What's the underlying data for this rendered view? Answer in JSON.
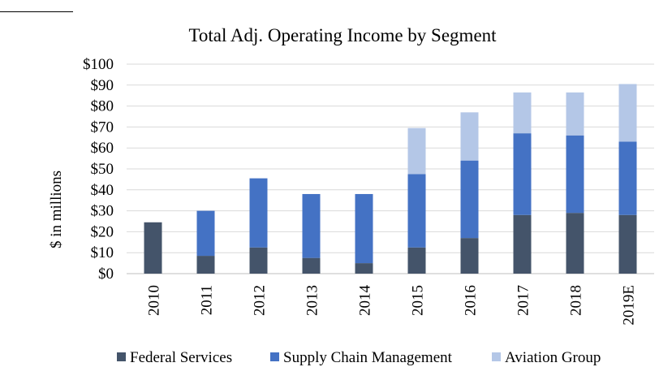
{
  "chart_data": {
    "type": "bar",
    "stacked": true,
    "title": "Total Adj. Operating Income by Segment",
    "xlabel": "",
    "ylabel": "$ in millions",
    "ylim": [
      0,
      100
    ],
    "y_ticks": [
      "$0",
      "$10",
      "$20",
      "$30",
      "$40",
      "$50",
      "$60",
      "$70",
      "$80",
      "$90",
      "$100"
    ],
    "grid": true,
    "legend_position": "bottom",
    "categories": [
      "2010",
      "2011",
      "2012",
      "2013",
      "2014",
      "2015",
      "2016",
      "2017",
      "2018",
      "2019E"
    ],
    "series": [
      {
        "name": "Federal Services",
        "color": "#44546a",
        "values": [
          24.5,
          8.5,
          12.5,
          7.5,
          5,
          12.5,
          17,
          28,
          29,
          28
        ]
      },
      {
        "name": "Supply Chain Management",
        "color": "#4472c4",
        "values": [
          0,
          21.5,
          33,
          30.5,
          33,
          35,
          37,
          39,
          37,
          35
        ]
      },
      {
        "name": "Aviation Group",
        "color": "#b4c7e7",
        "values": [
          0,
          0,
          0,
          0,
          0,
          22,
          23,
          19.5,
          20.5,
          27.5
        ]
      }
    ]
  }
}
